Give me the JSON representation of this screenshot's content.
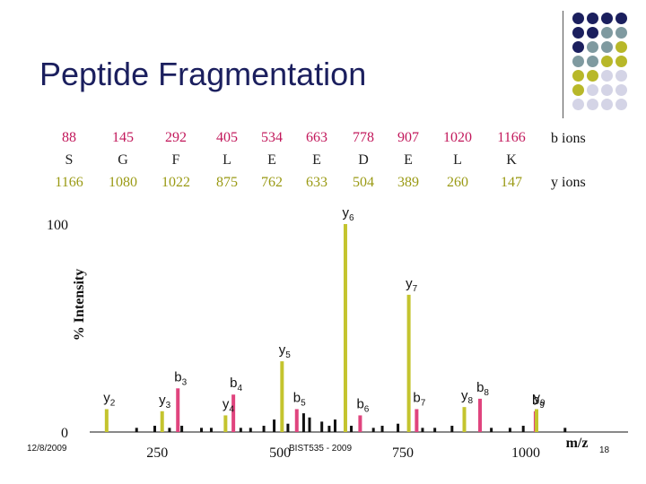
{
  "slide": {
    "title": "Peptide Fragmentation",
    "date": "12/8/2009",
    "course": "BIST535 - 2009",
    "page_number": "18"
  },
  "sequence_table": {
    "b_row_label": "b ions",
    "y_row_label": "y ions",
    "columns": [
      {
        "b": "88",
        "residue": "S",
        "y": "1166"
      },
      {
        "b": "145",
        "residue": "G",
        "y": "1080"
      },
      {
        "b": "292",
        "residue": "F",
        "y": "1022"
      },
      {
        "b": "405",
        "residue": "L",
        "y": "875"
      },
      {
        "b": "534",
        "residue": "E",
        "y": "762"
      },
      {
        "b": "663",
        "residue": "E",
        "y": "633"
      },
      {
        "b": "778",
        "residue": "D",
        "y": "504"
      },
      {
        "b": "907",
        "residue": "E",
        "y": "389"
      },
      {
        "b": "1020",
        "residue": "L",
        "y": "260"
      },
      {
        "b": "1166",
        "residue": "K",
        "y": "147"
      }
    ]
  },
  "colors": {
    "b_ion": "#e0447e",
    "y_ion": "#c4c42e",
    "noise": "#111111",
    "title": "#1b1f5e",
    "dot_navy": "#1b1f5e",
    "dot_teal": "#7f9aa0",
    "dot_olive": "#b8b829",
    "dot_lavender": "#d4d4e6"
  },
  "decor_dots": [
    [
      "dot_navy",
      "dot_navy",
      "dot_navy",
      "dot_navy"
    ],
    [
      "dot_navy",
      "dot_navy",
      "dot_teal",
      "dot_teal"
    ],
    [
      "dot_navy",
      "dot_teal",
      "dot_teal",
      "dot_olive"
    ],
    [
      "dot_teal",
      "dot_teal",
      "dot_olive",
      "dot_olive"
    ],
    [
      "dot_olive",
      "dot_olive",
      "dot_lavender",
      "dot_lavender"
    ],
    [
      "dot_olive",
      "dot_lavender",
      "dot_lavender",
      "dot_lavender"
    ],
    [
      "dot_lavender",
      "dot_lavender",
      "dot_lavender",
      "dot_lavender"
    ]
  ],
  "chart_data": {
    "type": "bar",
    "ylabel": "% Intensity",
    "xlabel": "m/z",
    "xlim": [
      140,
      1190
    ],
    "ylim": [
      0,
      100
    ],
    "x_ticks": [
      250,
      500,
      750,
      1000
    ],
    "y_ticks": [
      0,
      100
    ],
    "peaks": [
      {
        "label": "y",
        "sub": "2",
        "ion": "y",
        "mz": 147,
        "intensity": 11
      },
      {
        "label": "b",
        "sub": "3",
        "ion": "b",
        "mz": 292,
        "intensity": 21
      },
      {
        "label": "y",
        "sub": "3",
        "ion": "y",
        "mz": 260,
        "intensity": 10
      },
      {
        "label": "b",
        "sub": "4",
        "ion": "b",
        "mz": 405,
        "intensity": 18
      },
      {
        "label": "y",
        "sub": "4",
        "ion": "y",
        "mz": 389,
        "intensity": 8
      },
      {
        "label": "b",
        "sub": "5",
        "ion": "b",
        "mz": 534,
        "intensity": 11
      },
      {
        "label": "y",
        "sub": "5",
        "ion": "y",
        "mz": 504,
        "intensity": 34
      },
      {
        "label": "b",
        "sub": "6",
        "ion": "b",
        "mz": 663,
        "intensity": 8
      },
      {
        "label": "y",
        "sub": "6",
        "ion": "y",
        "mz": 633,
        "intensity": 100
      },
      {
        "label": "b",
        "sub": "7",
        "ion": "b",
        "mz": 778,
        "intensity": 11
      },
      {
        "label": "y",
        "sub": "7",
        "ion": "y",
        "mz": 762,
        "intensity": 66
      },
      {
        "label": "b",
        "sub": "8",
        "ion": "b",
        "mz": 907,
        "intensity": 16
      },
      {
        "label": "y",
        "sub": "8",
        "ion": "y",
        "mz": 875,
        "intensity": 12
      },
      {
        "label": "b",
        "sub": "9",
        "ion": "b",
        "mz": 1020,
        "intensity": 10
      },
      {
        "label": "y",
        "sub": "9",
        "ion": "y",
        "mz": 1022,
        "intensity": 11
      }
    ],
    "noise": [
      {
        "mz": 208,
        "intensity": 2
      },
      {
        "mz": 245,
        "intensity": 3
      },
      {
        "mz": 275,
        "intensity": 2
      },
      {
        "mz": 300,
        "intensity": 3
      },
      {
        "mz": 340,
        "intensity": 2
      },
      {
        "mz": 360,
        "intensity": 2
      },
      {
        "mz": 420,
        "intensity": 2
      },
      {
        "mz": 440,
        "intensity": 2
      },
      {
        "mz": 467,
        "intensity": 3
      },
      {
        "mz": 488,
        "intensity": 6
      },
      {
        "mz": 516,
        "intensity": 4
      },
      {
        "mz": 548,
        "intensity": 9
      },
      {
        "mz": 560,
        "intensity": 7
      },
      {
        "mz": 585,
        "intensity": 5
      },
      {
        "mz": 600,
        "intensity": 3
      },
      {
        "mz": 612,
        "intensity": 6
      },
      {
        "mz": 645,
        "intensity": 3
      },
      {
        "mz": 690,
        "intensity": 2
      },
      {
        "mz": 708,
        "intensity": 3
      },
      {
        "mz": 740,
        "intensity": 4
      },
      {
        "mz": 790,
        "intensity": 2
      },
      {
        "mz": 815,
        "intensity": 2
      },
      {
        "mz": 850,
        "intensity": 3
      },
      {
        "mz": 930,
        "intensity": 2
      },
      {
        "mz": 968,
        "intensity": 2
      },
      {
        "mz": 995,
        "intensity": 3
      },
      {
        "mz": 1080,
        "intensity": 2
      }
    ]
  }
}
